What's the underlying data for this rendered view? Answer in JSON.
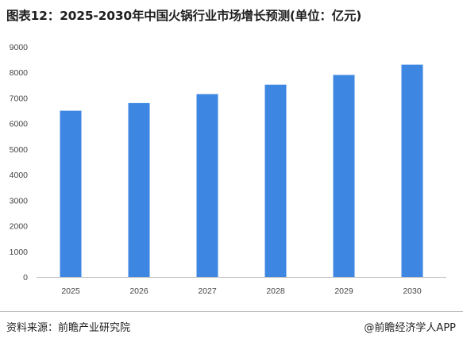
{
  "title": "图表12：2025-2030年中国火锅行业市场增长预测(单位：亿元)",
  "footer": {
    "source": "资料来源：前瞻产业研究院",
    "brand": "@前瞻经济学人APP"
  },
  "colors": {
    "bar": "#3d86e2",
    "axis": "#bdbdbd"
  },
  "chart_data": {
    "type": "bar",
    "categories": [
      "2025",
      "2026",
      "2027",
      "2028",
      "2029",
      "2030"
    ],
    "values": [
      6500,
      6800,
      7150,
      7520,
      7900,
      8300
    ],
    "title": "图表12：2025-2030年中国火锅行业市场增长预测(单位：亿元)",
    "xlabel": "",
    "ylabel": "",
    "ylim": [
      0,
      9000
    ],
    "yticks": [
      0,
      1000,
      2000,
      3000,
      4000,
      5000,
      6000,
      7000,
      8000,
      9000
    ],
    "grid": false,
    "legend": "none"
  }
}
